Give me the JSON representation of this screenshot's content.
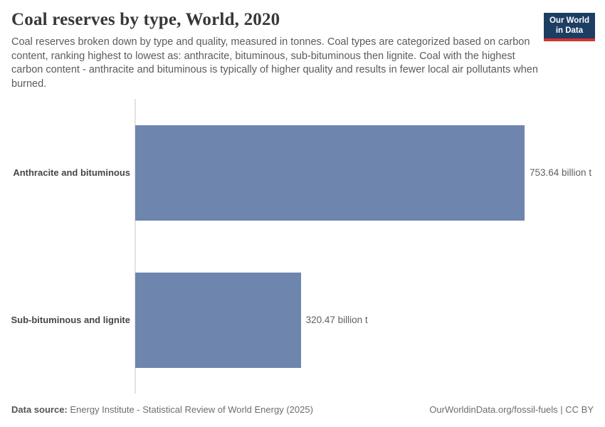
{
  "header": {
    "title": "Coal reserves by type, World, 2020",
    "subtitle": "Coal reserves broken down by type and quality, measured in tonnes. Coal types are categorized based on carbon content, ranking highest to lowest as: anthracite, bituminous, sub-bituminous then lignite. Coal with the highest carbon content - anthracite and bituminous is typically of higher quality and results in fewer local air pollutants when burned."
  },
  "logo": {
    "line1": "Our World",
    "line2": "in Data",
    "bg_color": "#1d3d63",
    "accent_color": "#cf352e"
  },
  "chart_data": {
    "type": "bar",
    "orientation": "horizontal",
    "title": "Coal reserves by type, World, 2020",
    "categories": [
      "Anthracite and bituminous",
      "Sub-bituminous and lignite"
    ],
    "values": [
      753.64,
      320.47
    ],
    "value_labels": [
      "753.64 billion t",
      "320.47 billion t"
    ],
    "unit": "billion t",
    "bar_color": "#6e85ae",
    "xlim": [
      0,
      753.64
    ],
    "grid": false,
    "legend": "none"
  },
  "footer": {
    "source_label": "Data source:",
    "source_text": "Energy Institute - Statistical Review of World Energy (2025)",
    "right_text": "OurWorldinData.org/fossil-fuels | CC BY"
  }
}
